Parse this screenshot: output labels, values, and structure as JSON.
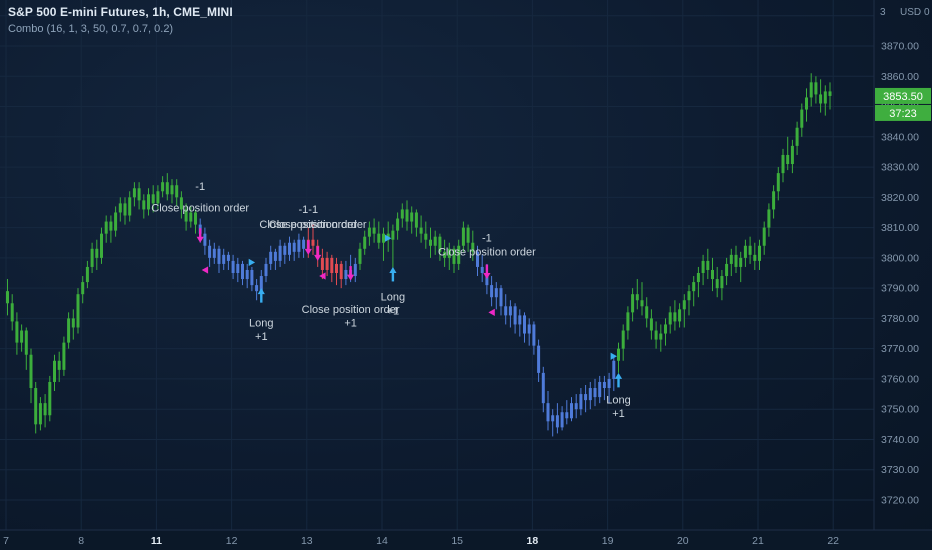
{
  "header": {
    "title": "S&P 500 E-mini Futures, 1h, CME_MINI",
    "indicator": "Combo (16, 1, 3, 50, 0.7, 0.7, 0.2)"
  },
  "axis_header": {
    "items": [
      "3",
      "USD",
      "0"
    ]
  },
  "price_badge": {
    "value": "3853.50",
    "countdown": "37:23"
  },
  "colors": {
    "background": "#0d1b2f",
    "grid": "#16283f",
    "up": "#3cae3c",
    "down": "#4f7bd9",
    "short": "#e14b52",
    "magenta": "#ee28c5",
    "cyan": "#38aef0",
    "axis_text": "#8598ad",
    "label_text": "#cdd6de",
    "badge_bg": "#3fae3f",
    "badge_text": "#ffffff",
    "time_axis_bg": "#0b1828",
    "separator": "#1f2e47",
    "time_emphasis": "#e3ebf3"
  },
  "chart_data": {
    "type": "candlestick",
    "title": "S&P 500 E-mini Futures, 1h, CME_MINI",
    "indicator": "Combo (16, 1, 3, 50, 0.7, 0.7, 0.2)",
    "price_axis": {
      "min_label": 3720,
      "max_label": 3870,
      "step": 10,
      "unit": "USD"
    },
    "time_axis": {
      "labels": [
        "7",
        "8",
        "11",
        "12",
        "13",
        "14",
        "15",
        "18",
        "19",
        "20",
        "21",
        "22"
      ],
      "emphasized": [
        "11",
        "18"
      ],
      "candles_per_label": 16
    },
    "last_price": 3853.5,
    "countdown": "37:23",
    "candles": [
      [
        3789,
        3793,
        3781,
        3785,
        "g"
      ],
      [
        3785,
        3788,
        3776,
        3779,
        "g"
      ],
      [
        3779,
        3782,
        3768,
        3772,
        "g"
      ],
      [
        3772,
        3778,
        3769,
        3776,
        "g"
      ],
      [
        3776,
        3777,
        3763,
        3768,
        "g"
      ],
      [
        3768,
        3770,
        3752,
        3757,
        "g"
      ],
      [
        3757,
        3759,
        3742,
        3745,
        "g"
      ],
      [
        3745,
        3754,
        3743,
        3752,
        "g"
      ],
      [
        3752,
        3755,
        3744,
        3748,
        "g"
      ],
      [
        3748,
        3761,
        3746,
        3759,
        "g"
      ],
      [
        3759,
        3768,
        3756,
        3766,
        "g"
      ],
      [
        3766,
        3769,
        3759,
        3763,
        "g"
      ],
      [
        3763,
        3774,
        3761,
        3772,
        "g"
      ],
      [
        3772,
        3782,
        3770,
        3780,
        "g"
      ],
      [
        3780,
        3783,
        3773,
        3777,
        "g"
      ],
      [
        3777,
        3790,
        3775,
        3788,
        "g"
      ],
      [
        3788,
        3794,
        3785,
        3792,
        "g"
      ],
      [
        3792,
        3799,
        3790,
        3797,
        "g"
      ],
      [
        3797,
        3805,
        3795,
        3803,
        "g"
      ],
      [
        3803,
        3806,
        3796,
        3800,
        "g"
      ],
      [
        3800,
        3810,
        3798,
        3808,
        "g"
      ],
      [
        3808,
        3814,
        3805,
        3812,
        "g"
      ],
      [
        3812,
        3814,
        3805,
        3809,
        "g"
      ],
      [
        3809,
        3817,
        3807,
        3815,
        "g"
      ],
      [
        3815,
        3820,
        3812,
        3818,
        "g"
      ],
      [
        3818,
        3820,
        3811,
        3814,
        "g"
      ],
      [
        3814,
        3822,
        3812,
        3820,
        "g"
      ],
      [
        3820,
        3825,
        3817,
        3823,
        "g"
      ],
      [
        3823,
        3825,
        3816,
        3819,
        "g"
      ],
      [
        3819,
        3821,
        3813,
        3816,
        "g"
      ],
      [
        3816,
        3823,
        3814,
        3821,
        "g"
      ],
      [
        3821,
        3824,
        3815,
        3818,
        "g"
      ],
      [
        3818,
        3824,
        3816,
        3822,
        "g"
      ],
      [
        3822,
        3827,
        3820,
        3825,
        "g"
      ],
      [
        3825,
        3828,
        3819,
        3821,
        "g"
      ],
      [
        3821,
        3826,
        3818,
        3824,
        "g"
      ],
      [
        3824,
        3826,
        3817,
        3820,
        "g"
      ],
      [
        3820,
        3822,
        3813,
        3816,
        "g"
      ],
      [
        3816,
        3818,
        3809,
        3812,
        "g"
      ],
      [
        3812,
        3817,
        3810,
        3815,
        "g"
      ],
      [
        3815,
        3816,
        3808,
        3811,
        "g"
      ],
      [
        3811,
        3813,
        3805,
        3808,
        "b"
      ],
      [
        3808,
        3810,
        3801,
        3804,
        "b"
      ],
      [
        3804,
        3806,
        3797,
        3800,
        "b"
      ],
      [
        3800,
        3805,
        3798,
        3803,
        "b"
      ],
      [
        3803,
        3804,
        3795,
        3798,
        "b"
      ],
      [
        3798,
        3803,
        3796,
        3801,
        "b"
      ],
      [
        3801,
        3802,
        3796,
        3799,
        "b"
      ],
      [
        3799,
        3801,
        3793,
        3795,
        "b"
      ],
      [
        3795,
        3800,
        3792,
        3798,
        "b"
      ],
      [
        3798,
        3799,
        3791,
        3793,
        "b"
      ],
      [
        3793,
        3798,
        3790,
        3796,
        "b"
      ],
      [
        3796,
        3797,
        3789,
        3791,
        "b"
      ],
      [
        3791,
        3793,
        3786,
        3789,
        "b"
      ],
      [
        3789,
        3796,
        3787,
        3794,
        "b"
      ],
      [
        3794,
        3800,
        3792,
        3798,
        "b"
      ],
      [
        3798,
        3804,
        3796,
        3802,
        "b"
      ],
      [
        3802,
        3803,
        3796,
        3799,
        "b"
      ],
      [
        3799,
        3806,
        3797,
        3804,
        "b"
      ],
      [
        3804,
        3805,
        3798,
        3801,
        "b"
      ],
      [
        3801,
        3807,
        3799,
        3805,
        "b"
      ],
      [
        3805,
        3806,
        3799,
        3802,
        "b"
      ],
      [
        3802,
        3808,
        3800,
        3806,
        "b"
      ],
      [
        3806,
        3807,
        3800,
        3803,
        "b"
      ],
      [
        3803,
        3810,
        3800,
        3806,
        "r"
      ],
      [
        3806,
        3811,
        3801,
        3804,
        "r"
      ],
      [
        3804,
        3806,
        3797,
        3800,
        "r"
      ],
      [
        3800,
        3803,
        3793,
        3796,
        "r"
      ],
      [
        3796,
        3802,
        3794,
        3800,
        "r"
      ],
      [
        3800,
        3801,
        3792,
        3795,
        "r"
      ],
      [
        3795,
        3800,
        3791,
        3798,
        "r"
      ],
      [
        3798,
        3799,
        3790,
        3793,
        "r"
      ],
      [
        3793,
        3799,
        3791,
        3796,
        "b"
      ],
      [
        3796,
        3801,
        3792,
        3794,
        "b"
      ],
      [
        3794,
        3800,
        3792,
        3798,
        "b"
      ],
      [
        3798,
        3805,
        3796,
        3803,
        "g"
      ],
      [
        3803,
        3809,
        3801,
        3807,
        "g"
      ],
      [
        3807,
        3812,
        3804,
        3810,
        "g"
      ],
      [
        3810,
        3813,
        3805,
        3808,
        "g"
      ],
      [
        3808,
        3812,
        3803,
        3805,
        "g"
      ],
      [
        3805,
        3810,
        3799,
        3808,
        "g"
      ],
      [
        3808,
        3812,
        3802,
        3806,
        "g"
      ],
      [
        3806,
        3811,
        3796,
        3809,
        "g"
      ],
      [
        3809,
        3815,
        3806,
        3813,
        "g"
      ],
      [
        3813,
        3818,
        3810,
        3816,
        "g"
      ],
      [
        3816,
        3819,
        3809,
        3812,
        "g"
      ],
      [
        3812,
        3817,
        3808,
        3815,
        "g"
      ],
      [
        3815,
        3816,
        3807,
        3810,
        "g"
      ],
      [
        3810,
        3814,
        3805,
        3808,
        "g"
      ],
      [
        3808,
        3812,
        3803,
        3806,
        "g"
      ],
      [
        3806,
        3810,
        3800,
        3804,
        "g"
      ],
      [
        3804,
        3809,
        3801,
        3807,
        "g"
      ],
      [
        3807,
        3808,
        3799,
        3802,
        "g"
      ],
      [
        3802,
        3806,
        3797,
        3800,
        "g"
      ],
      [
        3800,
        3805,
        3796,
        3803,
        "g"
      ],
      [
        3803,
        3804,
        3795,
        3798,
        "g"
      ],
      [
        3798,
        3806,
        3796,
        3804,
        "g"
      ],
      [
        3804,
        3812,
        3802,
        3810,
        "g"
      ],
      [
        3810,
        3811,
        3802,
        3805,
        "g"
      ],
      [
        3805,
        3809,
        3799,
        3802,
        "g"
      ],
      [
        3802,
        3804,
        3794,
        3797,
        "b"
      ],
      [
        3797,
        3801,
        3792,
        3795,
        "b"
      ],
      [
        3795,
        3798,
        3788,
        3791,
        "b"
      ],
      [
        3791,
        3794,
        3784,
        3787,
        "b"
      ],
      [
        3787,
        3792,
        3783,
        3790,
        "b"
      ],
      [
        3790,
        3791,
        3781,
        3784,
        "b"
      ],
      [
        3784,
        3788,
        3778,
        3781,
        "b"
      ],
      [
        3781,
        3786,
        3777,
        3784,
        "b"
      ],
      [
        3784,
        3785,
        3775,
        3778,
        "b"
      ],
      [
        3778,
        3783,
        3774,
        3781,
        "b"
      ],
      [
        3781,
        3782,
        3772,
        3775,
        "b"
      ],
      [
        3775,
        3780,
        3771,
        3778,
        "b"
      ],
      [
        3778,
        3779,
        3768,
        3771,
        "b"
      ],
      [
        3771,
        3773,
        3759,
        3762,
        "b"
      ],
      [
        3762,
        3764,
        3749,
        3752,
        "b"
      ],
      [
        3752,
        3756,
        3743,
        3746,
        "b"
      ],
      [
        3746,
        3750,
        3741,
        3748,
        "b"
      ],
      [
        3748,
        3752,
        3742,
        3744,
        "b"
      ],
      [
        3744,
        3751,
        3743,
        3749,
        "b"
      ],
      [
        3749,
        3753,
        3745,
        3747,
        "b"
      ],
      [
        3747,
        3754,
        3746,
        3752,
        "b"
      ],
      [
        3752,
        3755,
        3747,
        3750,
        "b"
      ],
      [
        3750,
        3757,
        3748,
        3755,
        "b"
      ],
      [
        3755,
        3758,
        3749,
        3753,
        "b"
      ],
      [
        3753,
        3759,
        3750,
        3757,
        "b"
      ],
      [
        3757,
        3760,
        3751,
        3754,
        "b"
      ],
      [
        3754,
        3761,
        3752,
        3759,
        "b"
      ],
      [
        3759,
        3761,
        3753,
        3757,
        "b"
      ],
      [
        3757,
        3762,
        3752,
        3760,
        "b"
      ],
      [
        3760,
        3768,
        3756,
        3766,
        "b"
      ],
      [
        3766,
        3772,
        3762,
        3770,
        "g"
      ],
      [
        3770,
        3778,
        3766,
        3776,
        "g"
      ],
      [
        3776,
        3784,
        3773,
        3782,
        "g"
      ],
      [
        3782,
        3790,
        3779,
        3788,
        "g"
      ],
      [
        3788,
        3793,
        3783,
        3786,
        "g"
      ],
      [
        3786,
        3792,
        3781,
        3784,
        "g"
      ],
      [
        3784,
        3787,
        3777,
        3780,
        "g"
      ],
      [
        3780,
        3783,
        3773,
        3776,
        "g"
      ],
      [
        3776,
        3779,
        3770,
        3773,
        "g"
      ],
      [
        3773,
        3778,
        3769,
        3775,
        "g"
      ],
      [
        3775,
        3780,
        3771,
        3778,
        "g"
      ],
      [
        3778,
        3784,
        3775,
        3782,
        "g"
      ],
      [
        3782,
        3786,
        3776,
        3779,
        "g"
      ],
      [
        3779,
        3785,
        3777,
        3783,
        "g"
      ],
      [
        3783,
        3788,
        3777,
        3786,
        "g"
      ],
      [
        3786,
        3791,
        3781,
        3789,
        "g"
      ],
      [
        3789,
        3794,
        3784,
        3792,
        "g"
      ],
      [
        3792,
        3797,
        3787,
        3795,
        "g"
      ],
      [
        3795,
        3801,
        3791,
        3799,
        "g"
      ],
      [
        3799,
        3803,
        3793,
        3796,
        "g"
      ],
      [
        3796,
        3800,
        3789,
        3793,
        "g"
      ],
      [
        3793,
        3797,
        3787,
        3790,
        "g"
      ],
      [
        3790,
        3796,
        3786,
        3794,
        "g"
      ],
      [
        3794,
        3800,
        3791,
        3798,
        "g"
      ],
      [
        3798,
        3803,
        3794,
        3801,
        "g"
      ],
      [
        3801,
        3804,
        3795,
        3797,
        "g"
      ],
      [
        3797,
        3802,
        3792,
        3800,
        "g"
      ],
      [
        3800,
        3806,
        3797,
        3804,
        "g"
      ],
      [
        3804,
        3807,
        3798,
        3801,
        "g"
      ],
      [
        3801,
        3805,
        3796,
        3799,
        "g"
      ],
      [
        3799,
        3806,
        3796,
        3804,
        "g"
      ],
      [
        3804,
        3812,
        3801,
        3810,
        "g"
      ],
      [
        3810,
        3818,
        3807,
        3816,
        "g"
      ],
      [
        3816,
        3824,
        3813,
        3822,
        "g"
      ],
      [
        3822,
        3830,
        3819,
        3828,
        "g"
      ],
      [
        3828,
        3836,
        3825,
        3834,
        "g"
      ],
      [
        3834,
        3840,
        3829,
        3831,
        "g"
      ],
      [
        3831,
        3839,
        3828,
        3837,
        "g"
      ],
      [
        3837,
        3845,
        3834,
        3843,
        "g"
      ],
      [
        3843,
        3851,
        3840,
        3849,
        "g"
      ],
      [
        3849,
        3856,
        3845,
        3853,
        "g"
      ],
      [
        3853,
        3861,
        3850,
        3858,
        "g"
      ],
      [
        3858,
        3860,
        3851,
        3854,
        "g"
      ],
      [
        3854,
        3859,
        3848,
        3851,
        "g"
      ],
      [
        3851,
        3857,
        3847,
        3855,
        "g"
      ],
      [
        3855,
        3858,
        3849,
        3853.5,
        "g"
      ]
    ],
    "markers": [
      {
        "i": 41,
        "kind": "arrow-down",
        "price": 3805,
        "labels": [
          {
            "text": "-1",
            "price": 3823.5
          },
          {
            "text": "Close position order",
            "price": 3816.5
          }
        ]
      },
      {
        "i": 42,
        "kind": "tri-left",
        "price": 3796
      },
      {
        "i": 52,
        "kind": "tri-right",
        "price": 3798.5
      },
      {
        "i": 54,
        "kind": "arrow-up",
        "price": 3790,
        "labels": [
          {
            "text": "Long",
            "price": 3778.5
          },
          {
            "text": "+1",
            "price": 3774
          }
        ]
      },
      {
        "i": 64,
        "kind": "arrow-down",
        "price": 3801,
        "labels": [
          {
            "text": "-1-1",
            "price": 3816
          },
          {
            "text": "Close position order",
            "price": 3811
          }
        ]
      },
      {
        "i": 66,
        "kind": "arrow-down",
        "price": 3799,
        "labels": [
          {
            "text": "Close position order",
            "price": 3811
          }
        ]
      },
      {
        "i": 67,
        "kind": "tri-left",
        "price": 3794
      },
      {
        "i": 73,
        "kind": "arrow-down",
        "price": 3792.5,
        "labels": [
          {
            "text": "Close position order",
            "price": 3783
          },
          {
            "text": "+1",
            "price": 3778.5
          }
        ]
      },
      {
        "i": 81,
        "kind": "tri-right",
        "price": 3806.5
      },
      {
        "i": 82,
        "kind": "arrow-up",
        "price": 3797,
        "labels": [
          {
            "text": "Long",
            "price": 3787
          },
          {
            "text": "+1",
            "price": 3782.5
          }
        ]
      },
      {
        "i": 102,
        "kind": "arrow-down",
        "price": 3793,
        "labels": [
          {
            "text": "-1",
            "price": 3806.5
          },
          {
            "text": "Close position order",
            "price": 3802
          }
        ]
      },
      {
        "i": 103,
        "kind": "tri-left",
        "price": 3782
      },
      {
        "i": 129,
        "kind": "tri-right",
        "price": 3767.5
      },
      {
        "i": 130,
        "kind": "arrow-up",
        "price": 3762,
        "labels": [
          {
            "text": "Long",
            "price": 3753
          },
          {
            "text": "+1",
            "price": 3748.5
          }
        ]
      }
    ]
  }
}
